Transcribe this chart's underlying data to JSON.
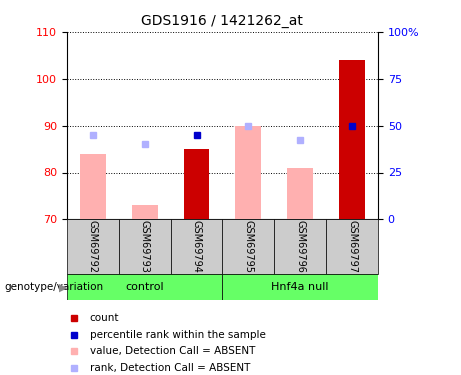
{
  "title": "GDS1916 / 1421262_at",
  "samples": [
    "GSM69792",
    "GSM69793",
    "GSM69794",
    "GSM69795",
    "GSM69796",
    "GSM69797"
  ],
  "ylim_left": [
    70,
    110
  ],
  "ylim_right": [
    0,
    100
  ],
  "yticks_left": [
    70,
    80,
    90,
    100,
    110
  ],
  "yticks_right": [
    0,
    25,
    50,
    75,
    100
  ],
  "ytick_labels_right": [
    "0",
    "25",
    "50",
    "75",
    "100%"
  ],
  "value_bars": [
    84,
    73,
    85,
    90,
    81,
    104
  ],
  "value_bar_colors": [
    "#ffb0b0",
    "#ffb0b0",
    "#cc0000",
    "#ffb0b0",
    "#ffb0b0",
    "#cc0000"
  ],
  "rank_dots": [
    88,
    86,
    88,
    90,
    87,
    90
  ],
  "rank_dot_colors": [
    "#b0b0ff",
    "#b0b0ff",
    "#0000cc",
    "#b0b0ff",
    "#b0b0ff",
    "#0000cc"
  ],
  "bar_bottom": 70,
  "control_label": "control",
  "null_label": "Hnf4a null",
  "genotype_label": "genotype/variation",
  "group_bg_color": "#66ff66",
  "sample_bg_color": "#cccccc",
  "legend_items": [
    {
      "color": "#cc0000",
      "label": "count"
    },
    {
      "color": "#0000cc",
      "label": "percentile rank within the sample"
    },
    {
      "color": "#ffb0b0",
      "label": "value, Detection Call = ABSENT"
    },
    {
      "color": "#b0b0ff",
      "label": "rank, Detection Call = ABSENT"
    }
  ]
}
